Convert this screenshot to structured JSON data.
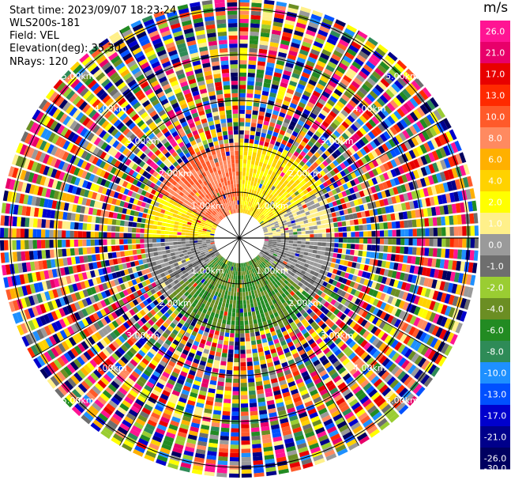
{
  "info": {
    "start_time": "Start time: 2023/09/07 18:23:24",
    "site": "WLS200s-181",
    "field": "Field: VEL",
    "elevation": "Elevation(deg): 35.30",
    "nrays": "NRays: 120"
  },
  "colorbar": {
    "unit": "m/s",
    "ticks": [
      "26.0",
      "21.0",
      "17.0",
      "13.0",
      "10.0",
      "8.0",
      "6.0",
      "4.0",
      "2.0",
      "1.0",
      "0.0",
      "-1.0",
      "-2.0",
      "-4.0",
      "-6.0",
      "-8.0",
      "-10.0",
      "-13.0",
      "-17.0",
      "-21.0",
      "-26.0",
      "-30.0"
    ],
    "colors": [
      "#ff1493",
      "#e8006a",
      "#e80000",
      "#ff2a00",
      "#ff5a2a",
      "#ff8a60",
      "#ffb000",
      "#ffd200",
      "#ffff00",
      "#fff08a",
      "#9a9a9a",
      "#6e6e6e",
      "#9acd32",
      "#6b8e23",
      "#228b22",
      "#2e8b57",
      "#1e90ff",
      "#0050ff",
      "#0000cd",
      "#00008b",
      "#000060"
    ]
  },
  "chart_data": {
    "type": "heatmap",
    "title": "",
    "field": "VEL",
    "units": "m/s",
    "elevation_deg": 35.3,
    "nrays": 120,
    "range_rings_km": [
      1.0,
      2.0,
      3.0,
      4.0,
      5.0
    ],
    "ring_labels": [
      "1.00km",
      "2.00km",
      "3.00km",
      "4.00km",
      "5.00km"
    ],
    "sectors": [
      {
        "azimuth_from": 300,
        "azimuth_to": 360,
        "range_km": [
          0.5,
          2.0
        ],
        "velocity": 8.0
      },
      {
        "azimuth_from": 0,
        "azimuth_to": 60,
        "range_km": [
          0.5,
          2.0
        ],
        "velocity": 2.0
      },
      {
        "azimuth_from": 60,
        "azimuth_to": 90,
        "range_km": [
          0.5,
          2.0
        ],
        "velocity": 0.0
      },
      {
        "azimuth_from": 90,
        "azimuth_to": 130,
        "range_km": [
          0.5,
          2.0
        ],
        "velocity": -1.0
      },
      {
        "azimuth_from": 130,
        "azimuth_to": 230,
        "range_km": [
          0.5,
          2.0
        ],
        "velocity": -6.0
      },
      {
        "azimuth_from": 230,
        "azimuth_to": 270,
        "range_km": [
          0.5,
          2.0
        ],
        "velocity": -1.0
      },
      {
        "azimuth_from": 270,
        "azimuth_to": 300,
        "range_km": [
          0.5,
          2.0
        ],
        "velocity": 2.0
      }
    ],
    "outer_region": "noise",
    "colorbar_range": [
      -30.0,
      26.0
    ]
  }
}
